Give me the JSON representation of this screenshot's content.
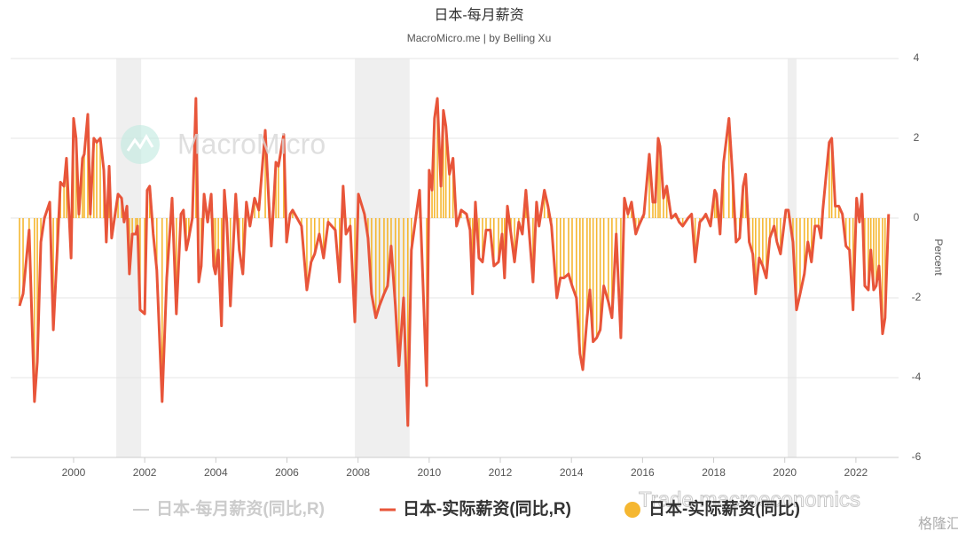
{
  "chart_data": {
    "type": "line",
    "title": "日本-每月薪资",
    "subtitle": "MacroMicro.me | by Belling Xu",
    "y_axis_label": "Percent",
    "watermarks": [
      "MacroMicro",
      "Trade macroeconomics",
      "格隆汇"
    ],
    "xlim": [
      1998.23,
      2023.2
    ],
    "xticks": [
      2000,
      2002,
      2004,
      2006,
      2008,
      2010,
      2012,
      2014,
      2016,
      2018,
      2020,
      2022
    ],
    "ylim": [
      -6,
      4
    ],
    "yticks": [
      4,
      2,
      0,
      -2,
      -4,
      -6
    ],
    "grid": true,
    "y_axis_side": "right",
    "shaded_ranges": [
      [
        2001.2,
        2001.9
      ],
      [
        2007.91,
        2009.45
      ],
      [
        2020.08,
        2020.33
      ]
    ],
    "x": [
      1998.48,
      1998.58,
      1998.75,
      1998.9,
      1998.98,
      1999.08,
      1999.18,
      1999.33,
      1999.43,
      1999.53,
      1999.63,
      1999.73,
      1999.8,
      1999.93,
      2000,
      2000.07,
      2000.15,
      2000.25,
      2000.3,
      2000.4,
      2000.47,
      2000.57,
      2000.65,
      2000.75,
      2000.85,
      2000.92,
      2001,
      2001.07,
      2001.25,
      2001.35,
      2001.42,
      2001.5,
      2001.57,
      2001.65,
      2001.75,
      2001.8,
      2001.87,
      2002,
      2002.07,
      2002.14,
      2002.24,
      2002.34,
      2002.49,
      2002.62,
      2002.77,
      2002.89,
      2003.02,
      2003.09,
      2003.17,
      2003.24,
      2003.34,
      2003.44,
      2003.52,
      2003.59,
      2003.67,
      2003.77,
      2003.87,
      2003.94,
      2003.99,
      2004.07,
      2004.16,
      2004.24,
      2004.31,
      2004.41,
      2004.56,
      2004.66,
      2004.76,
      2004.86,
      2004.96,
      2005.09,
      2005.21,
      2005.39,
      2005.49,
      2005.56,
      2005.69,
      2005.76,
      2005.91,
      2005.99,
      2006.09,
      2006.16,
      2006.41,
      2006.56,
      2006.68,
      2006.78,
      2006.91,
      2007.03,
      2007.16,
      2007.36,
      2007.48,
      2007.58,
      2007.66,
      2007.78,
      2007.91,
      2008.01,
      2008.18,
      2008.28,
      2008.38,
      2008.5,
      2008.6,
      2008.73,
      2008.83,
      2008.93,
      2009.05,
      2009.15,
      2009.28,
      2009.4,
      2009.5,
      2009.73,
      2009.93,
      2010,
      2010.08,
      2010.15,
      2010.23,
      2010.33,
      2010.4,
      2010.47,
      2010.57,
      2010.67,
      2010.77,
      2010.9,
      2011.05,
      2011.15,
      2011.22,
      2011.3,
      2011.4,
      2011.5,
      2011.6,
      2011.72,
      2011.82,
      2011.95,
      2012.05,
      2012.12,
      2012.2,
      2012.3,
      2012.4,
      2012.52,
      2012.62,
      2012.72,
      2012.79,
      2012.92,
      2013.02,
      2013.09,
      2013.24,
      2013.34,
      2013.44,
      2013.59,
      2013.69,
      2013.79,
      2013.92,
      2014.02,
      2014.14,
      2014.24,
      2014.32,
      2014.44,
      2014.52,
      2014.61,
      2014.71,
      2014.81,
      2014.91,
      2015.04,
      2015.14,
      2015.26,
      2015.39,
      2015.49,
      2015.59,
      2015.69,
      2015.81,
      2015.89,
      2016.04,
      2016.19,
      2016.29,
      2016.36,
      2016.44,
      2016.49,
      2016.59,
      2016.68,
      2016.81,
      2016.93,
      2017.03,
      2017.13,
      2017.28,
      2017.38,
      2017.48,
      2017.61,
      2017.71,
      2017.78,
      2017.91,
      2018.03,
      2018.08,
      2018.18,
      2018.28,
      2018.43,
      2018.53,
      2018.63,
      2018.73,
      2018.83,
      2018.9,
      2019,
      2019.1,
      2019.18,
      2019.28,
      2019.38,
      2019.48,
      2019.58,
      2019.7,
      2019.78,
      2019.88,
      2020.03,
      2020.1,
      2020.23,
      2020.33,
      2020.43,
      2020.55,
      2020.65,
      2020.75,
      2020.85,
      2020.95,
      2021.02,
      2021.07,
      2021.25,
      2021.32,
      2021.42,
      2021.52,
      2021.62,
      2021.72,
      2021.82,
      2021.92,
      2022.02,
      2022.1,
      2022.17,
      2022.25,
      2022.35,
      2022.42,
      2022.5,
      2022.57,
      2022.65,
      2022.75,
      2022.82,
      2022.92
    ],
    "series": [
      {
        "name": "日本-每月薪资(同比,R)",
        "color": "#cccccc",
        "hidden": true
      },
      {
        "name": "日本-实际薪资(同比,R)",
        "color": "#e8553a",
        "type": "line",
        "values": [
          -2.2,
          -1.9,
          -0.3,
          -4.6,
          -3.6,
          -0.6,
          0,
          0.4,
          -2.8,
          -1,
          0.9,
          0.8,
          1.5,
          -1,
          2.5,
          2,
          0.1,
          1.5,
          1.6,
          2.6,
          0.1,
          2,
          1.9,
          2,
          1.2,
          -0.6,
          1.3,
          -0.5,
          0.6,
          0.5,
          -0.1,
          0.3,
          -1.4,
          -0.4,
          -0.4,
          -0.2,
          -2.3,
          -2.4,
          0.7,
          0.8,
          -0.4,
          -1.3,
          -4.6,
          -1.5,
          0.5,
          -2.4,
          0.1,
          0.2,
          -0.8,
          -0.5,
          0,
          3,
          -1.6,
          -1.2,
          0.6,
          -0.1,
          0.6,
          -1.2,
          -1.4,
          -0.8,
          -2.7,
          0.7,
          -0.1,
          -2.2,
          0.6,
          -0.8,
          -1.4,
          0.4,
          -0.2,
          0.5,
          0.2,
          2.2,
          0.4,
          -0.7,
          1.4,
          1.3,
          2.1,
          -0.6,
          0.1,
          0.2,
          -0.2,
          -1.8,
          -1.1,
          -0.9,
          -0.4,
          -1,
          -0.1,
          -0.3,
          -1.6,
          0.8,
          -0.4,
          -0.2,
          -2.6,
          0.6,
          0.1,
          -0.5,
          -1.9,
          -2.5,
          -2.2,
          -1.9,
          -1.7,
          -0.7,
          -2.2,
          -3.7,
          -2,
          -5.2,
          -0.8,
          0.7,
          -4.2,
          1.2,
          0.7,
          2.5,
          3,
          0.8,
          2.7,
          2.3,
          1.1,
          1.5,
          -0.2,
          0.2,
          0.1,
          -0.3,
          -1.9,
          0.4,
          -1,
          -1.1,
          -0.3,
          -0.3,
          -1.2,
          -1.1,
          -0.4,
          -1.5,
          0.3,
          -0.4,
          -1.1,
          -0.1,
          -0.4,
          0.7,
          -0.1,
          -1.6,
          0.4,
          -0.2,
          0.7,
          0.3,
          -0.2,
          -2,
          -1.5,
          -1.5,
          -1.4,
          -1.7,
          -2,
          -3.4,
          -3.8,
          -2.5,
          -1.8,
          -3.1,
          -3,
          -2.8,
          -1.7,
          -2.1,
          -2.5,
          -0.4,
          -3,
          0.5,
          0.1,
          0.4,
          -0.4,
          -0.2,
          0.1,
          1.6,
          0.4,
          0.4,
          2,
          1.8,
          0.5,
          0.8,
          0,
          0.1,
          -0.1,
          -0.2,
          0,
          0.1,
          -1.1,
          -0.1,
          0,
          0.1,
          -0.2,
          0.7,
          0.6,
          -0.4,
          1.4,
          2.5,
          1.1,
          -0.6,
          -0.5,
          0.8,
          1.1,
          -0.6,
          -0.9,
          -1.9,
          -1,
          -1.2,
          -1.5,
          -0.5,
          -0.2,
          -0.6,
          -0.9,
          0.2,
          0.2,
          -0.6,
          -2.3,
          -1.9,
          -1.4,
          -0.6,
          -1.1,
          -0.2,
          -0.2,
          -0.5,
          0.2,
          1.9,
          2,
          0.3,
          0.3,
          0.1,
          -0.7,
          -0.8,
          -2.3,
          0.5,
          -0.1,
          0.6,
          -1.7,
          -1.8,
          -0.8,
          -1.8,
          -1.7,
          -1.2,
          -2.9,
          -2.5,
          0.1
        ]
      },
      {
        "name": "日本-实际薪资(同比)",
        "color": "#f5b731",
        "type": "column",
        "values": [
          -2.2,
          -1.9,
          -0.3,
          -4.6,
          -3.6,
          -0.6,
          0,
          0.4,
          -2.8,
          -1,
          0.9,
          0.8,
          1.5,
          -1,
          2.5,
          2,
          0.1,
          1.5,
          1.6,
          2.6,
          0.1,
          2,
          1.9,
          2,
          1.2,
          -0.6,
          1.3,
          -0.5,
          0.6,
          0.5,
          -0.1,
          0.3,
          -1.4,
          -0.4,
          -0.4,
          -0.2,
          -2.3,
          -2.4,
          0.7,
          0.8,
          -0.4,
          -1.3,
          -4.6,
          -1.5,
          0.5,
          -2.4,
          0.1,
          0.2,
          -0.8,
          -0.5,
          0,
          3,
          -1.6,
          -1.2,
          0.6,
          -0.1,
          0.6,
          -1.2,
          -1.4,
          -0.8,
          -2.7,
          0.7,
          -0.1,
          -2.2,
          0.6,
          -0.8,
          -1.4,
          0.4,
          -0.2,
          0.5,
          0.2,
          2.2,
          0.4,
          -0.7,
          1.4,
          1.3,
          2.1,
          -0.6,
          0.1,
          0.2,
          -0.2,
          -1.8,
          -1.1,
          -0.9,
          -0.4,
          -1,
          -0.1,
          -0.3,
          -1.6,
          0.8,
          -0.4,
          -0.2,
          -2.6,
          0.6,
          0.1,
          -0.5,
          -1.9,
          -2.5,
          -2.2,
          -1.9,
          -1.7,
          -0.7,
          -2.2,
          -3.7,
          -2,
          -5.2,
          -0.8,
          0.7,
          -4.2,
          1.2,
          0.7,
          2.5,
          3,
          0.8,
          2.7,
          2.3,
          1.1,
          1.5,
          -0.2,
          0.2,
          0.1,
          -0.3,
          -1.9,
          0.4,
          -1,
          -1.1,
          -0.3,
          -0.3,
          -1.2,
          -1.1,
          -0.4,
          -1.5,
          0.3,
          -0.4,
          -1.1,
          -0.1,
          -0.4,
          0.7,
          -0.1,
          -1.6,
          0.4,
          -0.2,
          0.7,
          0.3,
          -0.2,
          -2,
          -1.5,
          -1.5,
          -1.4,
          -1.7,
          -2,
          -3.4,
          -3.8,
          -2.5,
          -1.8,
          -3.1,
          -3,
          -2.8,
          -1.7,
          -2.1,
          -2.5,
          -0.4,
          -3,
          0.5,
          0.1,
          0.4,
          -0.4,
          -0.2,
          0.1,
          1.6,
          0.4,
          0.4,
          2,
          1.8,
          0.5,
          0.8,
          0,
          0.1,
          -0.1,
          -0.2,
          0,
          0.1,
          -1.1,
          -0.1,
          0,
          0.1,
          -0.2,
          0.7,
          0.6,
          -0.4,
          1.4,
          2.5,
          1.1,
          -0.6,
          -0.5,
          0.8,
          1.1,
          -0.6,
          -0.9,
          -1.9,
          -1,
          -1.2,
          -1.5,
          -0.5,
          -0.2,
          -0.6,
          -0.9,
          0.2,
          0.2,
          -0.6,
          -2.3,
          -1.9,
          -1.4,
          -0.6,
          -1.1,
          -0.2,
          -0.2,
          -0.5,
          0.2,
          1.9,
          2,
          0.3,
          0.3,
          0.1,
          -0.7,
          -0.8,
          -2.3,
          0.5,
          -0.1,
          0.6,
          -1.7,
          -1.8,
          -0.8,
          -1.8,
          -1.7,
          -1.2,
          -2.9,
          -2.5,
          0.1
        ]
      }
    ]
  }
}
